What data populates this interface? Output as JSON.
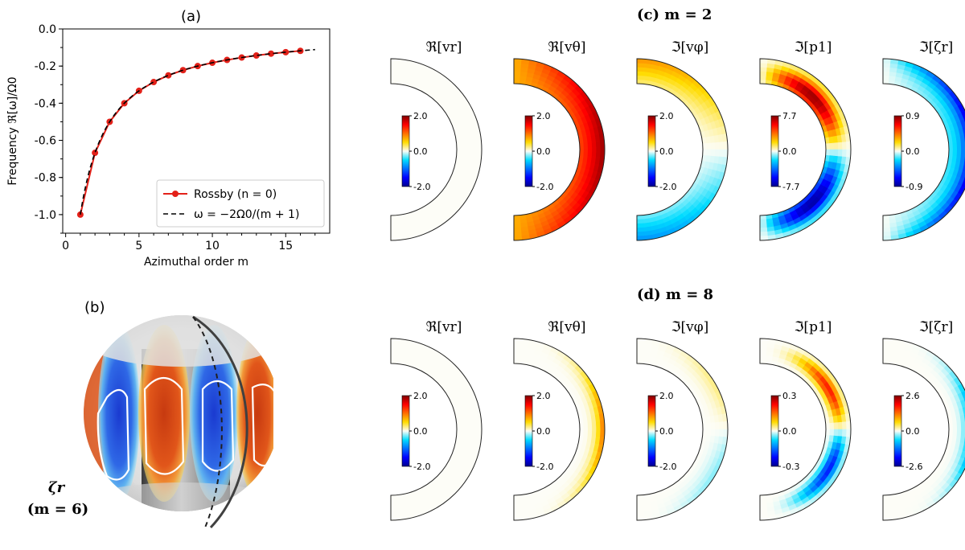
{
  "panel_labels": {
    "a": "(a)",
    "b": "(b)"
  },
  "row_titles": {
    "c": "(c) m = 2",
    "d": "(d) m = 8"
  },
  "sphere_label": {
    "line1": "ζr",
    "line2": "(m = 6)"
  },
  "chart_data": [
    {
      "type": "line",
      "title": "(a)",
      "xlabel": "Azimuthal order m",
      "ylabel": "Frequency ℜ[ω]/Ω0",
      "xlim": [
        -0.2,
        18
      ],
      "ylim": [
        -1.1,
        0.0
      ],
      "xticks": [
        0,
        5,
        10,
        15
      ],
      "yticks": [
        -1.0,
        -0.8,
        -0.6,
        -0.4,
        -0.2,
        0.0
      ],
      "ytick_labels": [
        "-1.0",
        "-0.8",
        "-0.6",
        "-0.4",
        "-0.2",
        "0.0"
      ],
      "grid": false,
      "legend_position": "lower-right",
      "series": [
        {
          "name": "Rossby (n = 0)",
          "color": "#e32119",
          "marker": "circle",
          "x": [
            1,
            2,
            3,
            4,
            5,
            6,
            7,
            8,
            9,
            10,
            11,
            12,
            13,
            14,
            15,
            16
          ],
          "y": [
            -1.0,
            -0.667,
            -0.5,
            -0.4,
            -0.333,
            -0.286,
            -0.25,
            -0.222,
            -0.2,
            -0.182,
            -0.167,
            -0.154,
            -0.143,
            -0.133,
            -0.125,
            -0.118
          ]
        },
        {
          "name": "ω = −2Ω0/(m + 1)",
          "color": "#000000",
          "dash": "dashed",
          "x_range": [
            1,
            17
          ]
        }
      ]
    },
    {
      "type": "heatmap",
      "title": "(c) m = 2",
      "panels": [
        {
          "label": "ℜ[vr]",
          "cbar": [
            "2.0",
            "0.0",
            "-2.0"
          ],
          "pattern": "zero"
        },
        {
          "label": "ℜ[vθ]",
          "cbar": [
            "2.0",
            "0.0",
            "-2.0"
          ],
          "pattern": "vtheta2"
        },
        {
          "label": "ℑ[vφ]",
          "cbar": [
            "2.0",
            "0.0",
            "-2.0"
          ],
          "pattern": "vphi2"
        },
        {
          "label": "ℑ[p1]",
          "cbar": [
            "7.7",
            "0.0",
            "-7.7"
          ],
          "pattern": "p2"
        },
        {
          "label": "ℑ[ζr]",
          "cbar": [
            "0.9",
            "0.0",
            "-0.9"
          ],
          "pattern": "zeta2"
        }
      ]
    },
    {
      "type": "heatmap",
      "title": "(d) m = 8",
      "panels": [
        {
          "label": "ℜ[vr]",
          "cbar": [
            "2.0",
            "0.0",
            "-2.0"
          ],
          "pattern": "zero"
        },
        {
          "label": "ℜ[vθ]",
          "cbar": [
            "2.0",
            "0.0",
            "-2.0"
          ],
          "pattern": "vtheta8"
        },
        {
          "label": "ℑ[vφ]",
          "cbar": [
            "2.0",
            "0.0",
            "-2.0"
          ],
          "pattern": "vphi8"
        },
        {
          "label": "ℑ[p1]",
          "cbar": [
            "0.3",
            "0.0",
            "-0.3"
          ],
          "pattern": "p8"
        },
        {
          "label": "ℑ[ζr]",
          "cbar": [
            "2.6",
            "0.0",
            "-2.6"
          ],
          "pattern": "zeta8"
        }
      ]
    }
  ]
}
